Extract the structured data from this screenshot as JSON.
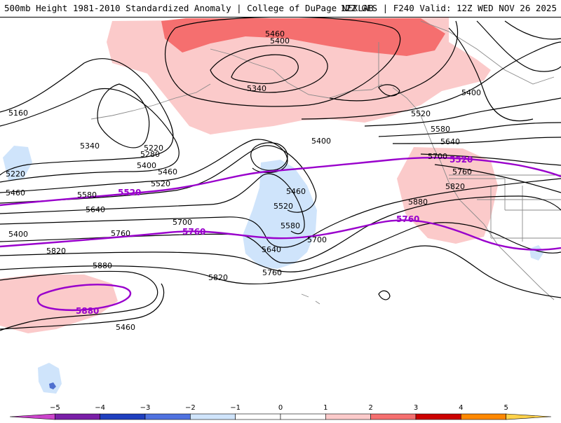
{
  "header": {
    "title_left": "500mb Height 1981-2010 Standardized Anomaly | College of DuPage NEXLAB",
    "title_right": "12Z GFS | F240 Valid: 12Z WED NOV 26 2025"
  },
  "map": {
    "field": "500mb geopotential height (m)",
    "contour_interval": 60,
    "black_contour_labels": [
      "5460",
      "5400",
      "5340",
      "5400",
      "5160",
      "5340",
      "5220",
      "5280",
      "5400",
      "5460",
      "5220",
      "5460",
      "5520",
      "5400",
      "5460",
      "5520",
      "5580",
      "5640",
      "5700",
      "5760",
      "5820",
      "5880",
      "5580",
      "5640",
      "5700",
      "5760",
      "5820",
      "5460",
      "5520",
      "5580",
      "5640",
      "5700",
      "5760",
      "5820",
      "5880",
      "5400",
      "5460",
      "5520",
      "5580",
      "5640",
      "5700",
      "5760",
      "5820"
    ],
    "highlight_contours": [
      {
        "value": "5520",
        "color": "#9900cc"
      },
      {
        "value": "5760",
        "color": "#9900cc"
      },
      {
        "value": "5880",
        "color": "#9900cc"
      }
    ],
    "anomaly_colors": {
      "positive_1": "#fbcaca",
      "positive_2": "#f56f6f",
      "negative_1": "#cfe4fb",
      "negative_2": "#9cc8f5",
      "negative_3": "#4f6fcf"
    }
  },
  "colorbar": {
    "ticks": [
      "−5",
      "−4",
      "−3",
      "−2",
      "−1",
      "0",
      "1",
      "2",
      "3",
      "4",
      "5"
    ],
    "colors": [
      "#cc44cc",
      "#7a1fa8",
      "#1f3fbf",
      "#4f72e0",
      "#cfe4fb",
      "#ffffff",
      "#ffffff",
      "#fbcaca",
      "#f56f6f",
      "#cc0000",
      "#ff8800",
      "#ffd24a"
    ]
  }
}
